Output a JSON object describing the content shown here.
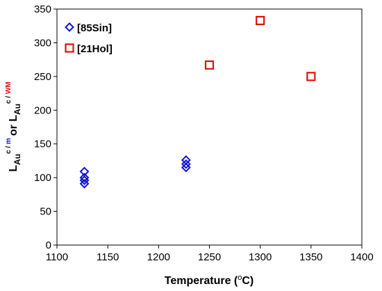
{
  "chart_data": {
    "type": "scatter",
    "xlabel": {
      "pre": "Temperature (",
      "sup": "o",
      "post": "C)"
    },
    "ylabel": {
      "p1": "L",
      "p1_sub": "Au",
      "p1_sup_a": "c / ",
      "p1_sup_b": "m",
      "mid": "or L",
      "p2_sub": "Au",
      "p2_sup_a": "c / ",
      "p2_sup_b": "WM"
    },
    "xlim": [
      1100,
      1400
    ],
    "ylim": [
      0,
      350
    ],
    "x_ticks": [
      1100,
      1150,
      1200,
      1250,
      1300,
      1350,
      1400
    ],
    "y_ticks": [
      0,
      50,
      100,
      150,
      200,
      250,
      300,
      350
    ],
    "grid": false,
    "legend": "top-left",
    "colors": {
      "series1": "#1010d8",
      "series2": "#e01010",
      "ylabel_blue": "#1010d8",
      "ylabel_red": "#e01010"
    },
    "series": [
      {
        "name": "[85Sin]",
        "marker": "diamond",
        "points": [
          {
            "x": 1127,
            "y": 109
          },
          {
            "x": 1127,
            "y": 100
          },
          {
            "x": 1127,
            "y": 96
          },
          {
            "x": 1127,
            "y": 91
          },
          {
            "x": 1227,
            "y": 126
          },
          {
            "x": 1227,
            "y": 120
          },
          {
            "x": 1227,
            "y": 115
          }
        ]
      },
      {
        "name": "[21Hol]",
        "marker": "square",
        "points": [
          {
            "x": 1250,
            "y": 267
          },
          {
            "x": 1300,
            "y": 333
          },
          {
            "x": 1350,
            "y": 250
          }
        ]
      }
    ]
  }
}
